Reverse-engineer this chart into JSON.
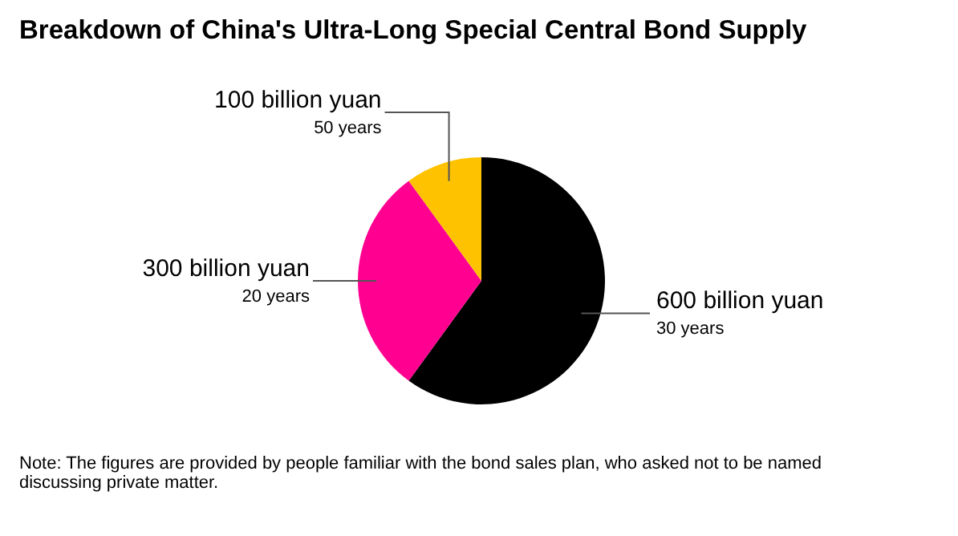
{
  "chart_data": {
    "type": "pie",
    "title": "Breakdown of China's Ultra-Long Special Central Bond Supply",
    "categories": [
      "30 years",
      "20 years",
      "50 years"
    ],
    "values": [
      600,
      300,
      100
    ],
    "value_labels": [
      "600 billion yuan",
      "300 billion yuan",
      "100 billion yuan"
    ],
    "colors": [
      "#000000",
      "#ff0090",
      "#ffc200"
    ],
    "annotations": [
      "Note: The figures are provided by people familiar with the bond sales plan, who asked not to be named discussing private matter."
    ]
  }
}
